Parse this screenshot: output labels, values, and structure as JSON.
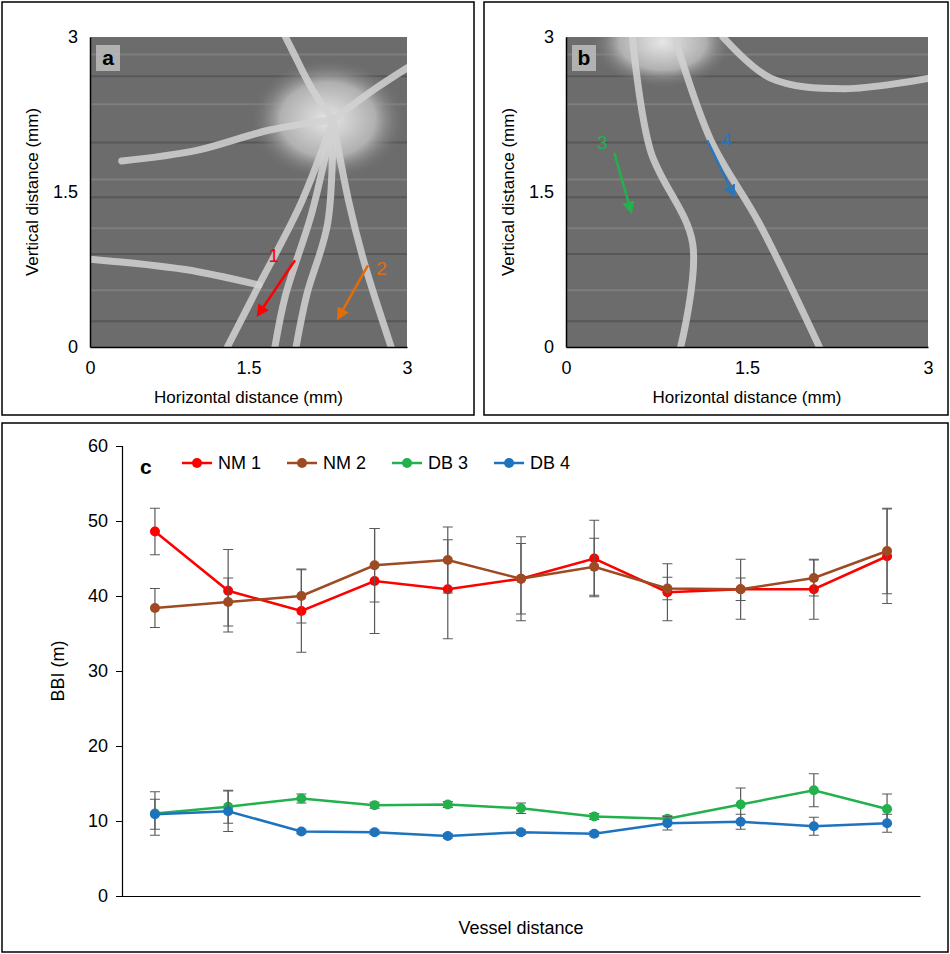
{
  "chart_data": [
    {
      "type": "image",
      "panel_label": "a",
      "x_label": "Horizontal distance (mm)",
      "y_label": "Vertical distance (mm)",
      "xlim": [
        0,
        3
      ],
      "ylim": [
        0,
        3
      ],
      "xticks": [
        0,
        1.5,
        3
      ],
      "yticks": [
        0,
        1.5,
        3
      ],
      "annotations": [
        {
          "text": "1",
          "color": "#ff0000"
        },
        {
          "text": "2",
          "color": "#e36c0a"
        }
      ]
    },
    {
      "type": "image",
      "panel_label": "b",
      "x_label": "Horizontal distance (mm)",
      "y_label": "Vertical distance (mm)",
      "xlim": [
        0,
        3
      ],
      "ylim": [
        0,
        3
      ],
      "xticks": [
        0,
        1.5,
        3
      ],
      "yticks": [
        0,
        1.5,
        3
      ],
      "annotations": [
        {
          "text": "3",
          "color": "#22b14c"
        },
        {
          "text": "4",
          "color": "#2e75b6"
        }
      ]
    },
    {
      "type": "line",
      "panel_label": "c",
      "x_label": "Vessel distance",
      "y_label": "BBI (m)",
      "categories": [
        null,
        null,
        null,
        null,
        null,
        null,
        null,
        null,
        null,
        null,
        null
      ],
      "ylim": [
        0,
        60
      ],
      "yticks": [
        0,
        10,
        20,
        30,
        40,
        50,
        60
      ],
      "tick_labels": "y",
      "legend": "top",
      "marker": "circle",
      "series": [
        {
          "name": "NM 1",
          "color": "#ff0000",
          "values": [
            48.6,
            40.7,
            38.0,
            42.0,
            40.9,
            42.3,
            45.0,
            40.5,
            40.9,
            40.9,
            45.3
          ],
          "errors": [
            3.1,
            5.5,
            5.5,
            7.0,
            6.6,
            5.6,
            5.1,
            3.8,
            4.0,
            4.0,
            6.3
          ]
        },
        {
          "name": "NM 2",
          "color": "#9e4a23",
          "values": [
            38.4,
            39.2,
            40.0,
            44.1,
            44.8,
            42.3,
            43.9,
            41.0,
            40.9,
            42.4,
            46.0
          ],
          "errors": [
            2.6,
            3.2,
            3.6,
            4.9,
            4.4,
            4.7,
            3.8,
            1.5,
            1.5,
            2.4,
            5.7
          ]
        },
        {
          "name": "DB 3",
          "color": "#22b14c",
          "values": [
            11.0,
            11.9,
            13.0,
            12.1,
            12.2,
            11.7,
            10.6,
            10.3,
            12.2,
            14.1,
            11.6
          ],
          "errors": [
            2.9,
            2.2,
            0.6,
            0.4,
            0.4,
            0.7,
            0.4,
            0.4,
            2.2,
            2.2,
            2.0
          ]
        },
        {
          "name": "DB 4",
          "color": "#1e73be",
          "values": [
            10.9,
            11.3,
            8.6,
            8.5,
            8.0,
            8.5,
            8.3,
            9.7,
            9.9,
            9.3,
            9.7
          ],
          "errors": [
            2.0,
            2.7,
            0.3,
            0.3,
            0.3,
            0.3,
            0.3,
            0.9,
            1.0,
            1.2,
            1.2
          ]
        }
      ]
    }
  ]
}
